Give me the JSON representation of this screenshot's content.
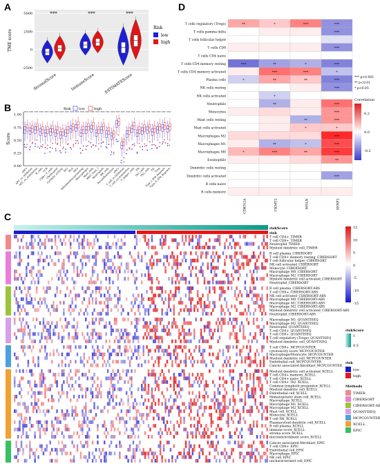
{
  "panels": {
    "a": "A",
    "b": "B",
    "c": "C",
    "d": "D"
  },
  "chart_data": [
    {
      "panel": "A",
      "type": "violin",
      "ylabel": "TME score",
      "yticks": [
        -2500,
        0,
        2500,
        5000
      ],
      "ylim": [
        -3000,
        5500
      ],
      "categories": [
        "StromalScore",
        "ImmuneScore",
        "ESTIMATEScore"
      ],
      "significance": [
        "***",
        "***",
        "***"
      ],
      "legend_title": "Risk",
      "colors": {
        "low": "#1f1fd6",
        "high": "#e01515"
      },
      "series": [
        {
          "name": "low",
          "median": [
            -350,
            620,
            300
          ],
          "q1": [
            -800,
            150,
            -500
          ],
          "q3": [
            100,
            1100,
            1000
          ],
          "min": [
            -1900,
            -800,
            -2200
          ],
          "max": [
            1300,
            2300,
            3200
          ]
        },
        {
          "name": "high",
          "median": [
            150,
            1000,
            1250
          ],
          "q1": [
            -300,
            500,
            400
          ],
          "q3": [
            600,
            1500,
            2000
          ],
          "min": [
            -1500,
            -500,
            -1400
          ],
          "max": [
            1900,
            2600,
            4200
          ]
        }
      ]
    },
    {
      "panel": "B",
      "type": "boxplot",
      "ylabel": "Score",
      "yticks": [
        0.0,
        0.25,
        0.5,
        0.75,
        1.0
      ],
      "ylim": [
        0,
        1.05
      ],
      "legend_title": "Risk",
      "colors": {
        "low": "#2a2ae0",
        "high": "#e02a2a"
      },
      "categories": [
        "aDCs",
        "APC_co_inhibition",
        "APC_co_stimulation",
        "B_cells",
        "CCR",
        "CD8+_T_cells",
        "Check-point",
        "Cytolytic_activity",
        "DCs",
        "HLA",
        "iDCs",
        "Inflammation-promoting",
        "Macrophages",
        "Mast_cells",
        "MHC_class_I",
        "Neutrophils",
        "NK_cells",
        "Parainflammation",
        "pDCs",
        "T_cell_co-inhibition",
        "T_cell_co-stimulation",
        "T_helper_cells",
        "Tfh",
        "Th1_cells",
        "Th2_cells",
        "TIL",
        "Treg",
        "Type_I_IFN_Reponse",
        "Type_II_IFN_Reponse"
      ],
      "low_median": [
        0.7,
        0.68,
        0.7,
        0.66,
        0.64,
        0.66,
        0.64,
        0.6,
        0.64,
        0.72,
        0.74,
        0.64,
        0.7,
        0.72,
        0.64,
        0.7,
        0.62,
        0.58,
        0.82,
        0.4,
        0.62,
        0.72,
        0.64,
        0.68,
        0.7,
        0.66,
        0.7,
        0.74,
        0.72
      ],
      "high_median": [
        0.74,
        0.72,
        0.76,
        0.7,
        0.7,
        0.72,
        0.7,
        0.66,
        0.7,
        0.76,
        0.8,
        0.7,
        0.76,
        0.78,
        0.7,
        0.76,
        0.68,
        0.62,
        0.86,
        0.46,
        0.68,
        0.78,
        0.7,
        0.74,
        0.74,
        0.72,
        0.76,
        0.78,
        0.76
      ]
    },
    {
      "panel": "C",
      "type": "heatmap",
      "legend_top_title": "riskScore",
      "legend_top_risk": "risk",
      "color_scale_ticks": [
        "15",
        "10",
        "5",
        "0",
        "-5",
        "-10",
        "-15"
      ],
      "annotation_legends": {
        "riskScore": {
          "title": "riskScore",
          "ticks": [
            "1",
            "0.5"
          ]
        },
        "risk": {
          "title": "risk",
          "items": [
            {
              "label": "low",
              "color": "#1a1ad0"
            },
            {
              "label": "high",
              "color": "#e01818"
            }
          ]
        },
        "methods": {
          "title": "Methods",
          "items": [
            {
              "label": "TIMER",
              "color": "#f08a8a"
            },
            {
              "label": "CIBERSORT",
              "color": "#e97ed8"
            },
            {
              "label": "CIBERSORT-ABS",
              "color": "#9cc43a"
            },
            {
              "label": "QUANTISEQ",
              "color": "#d6a0e8"
            },
            {
              "label": "MCPCOUNTER",
              "color": "#4aa0e0"
            },
            {
              "label": "XCELL",
              "color": "#f2a030"
            },
            {
              "label": "EPIC",
              "color": "#36c060"
            }
          ]
        }
      },
      "groups": [
        {
          "method": "TIMER",
          "rows": [
            "T cell CD4+_TIMER",
            "T cell CD8+_TIMER",
            "Neutrophil_TIMER",
            "Myeloid dendritic cell_TIMER"
          ]
        },
        {
          "method": "CIBERSORT",
          "rows": [
            "B cell plasma_CIBERSORT",
            "T cell CD4+ memory resting_CIBERSORT",
            "T cell follicular helper_CIBERSORT",
            "NK cell activated_CIBERSORT",
            "Monocyte_CIBERSORT",
            "Macrophage M0_CIBERSORT",
            "Macrophage M2_CIBERSORT",
            "Myeloid dendritic cell activated_CIBERSORT",
            "Neutrophil_CIBERSORT"
          ]
        },
        {
          "method": "CIBERSORT-ABS",
          "rows": [
            "B cell plasma_CIBERSORT-ABS",
            "T cell CD8+_CIBERSORT-ABS",
            "NK cell activated_CIBERSORT-ABS",
            "Macrophage M0_CIBERSORT-ABS",
            "Macrophage M1_CIBERSORT-ABS",
            "Macrophage M2_CIBERSORT-ABS",
            "Myeloid dendritic cell activated_CIBERSORT-ABS",
            "Neutrophil_CIBERSORT-ABS"
          ]
        },
        {
          "method": "QUANTISEQ",
          "rows": [
            "Macrophage M1_QUANTISEQ",
            "Macrophage M2_QUANTISEQ",
            "Neutrophil_QUANTISEQ",
            "T cell CD4+_QUANTISEQ",
            "T cell CD8+_QUANTISEQ",
            "T cell regulatory (Tregs)_QUANTISEQ",
            "Myeloid dendritic cell_QUANTISEQ"
          ]
        },
        {
          "method": "MCPCOUNTER",
          "rows": [
            "T cell CD8+_MCPCOUNTER",
            "cytotoxicity score_MCPCOUNTER",
            "Macrophage/Monocyte_MCPCOUNTER",
            "Myeloid dendritic cell_MCPCOUNTER",
            "Endothelial cell_MCPCOUNTER",
            "Cancer associated fibroblast_MCPCOUNTER"
          ]
        },
        {
          "method": "XCELL",
          "rows": [
            "Myeloid dendritic cell activated_XCELL",
            "T cell CD4+ memory_XCELL",
            "T cell CD4+ naive_XCELL",
            "T cell CD4+ Th2_XCELL",
            "Common lymphoid progenitor_XCELL",
            "Myeloid dendritic cell_XCELL",
            "Endothelial cell_XCELL",
            "Hematopoietic stem cell_XCELL",
            "Macrophage_XCELL",
            "Macrophage M1_XCELL",
            "Macrophage M2_XCELL",
            "Mast cell_XCELL",
            "Monocyte_XCELL",
            "T cell NK_XCELL",
            "Plasmacytoid dendritic cell_XCELL",
            "B cell plasma_XCELL",
            "immune score_XCELL",
            "stroma score_XCELL",
            "microenvironment score_XCELL"
          ]
        },
        {
          "method": "EPIC",
          "rows": [
            "Cancer associated fibroblast_EPIC",
            "T cell CD8+_EPIC",
            "Endothelial cell_EPIC",
            "Macrophage_EPIC",
            "NK cell_EPIC",
            "uncharacterized cell_EPIC"
          ]
        }
      ]
    },
    {
      "panel": "D",
      "type": "heatmap",
      "columns": [
        "CDKN2A",
        "CKMT2",
        "MSLN",
        "SFRP2"
      ],
      "rows": [
        "T cells regulatory (Tregs)",
        "T cells gamma delta",
        "T cells follicular helper",
        "T cells CD8",
        "T cells CD4 naive",
        "T cells CD4 memory resting",
        "T cells CD4 memory activated",
        "Plasma cells",
        "NK cells resting",
        "NK cells activated",
        "Neutrophils",
        "Monocytes",
        "Mast cells resting",
        "Mast cells activated",
        "Macrophages M2",
        "Macrophages M1",
        "Macrophages M0",
        "Eosinophils",
        "Dendritic cells resting",
        "Dendritic cells activated",
        "B cells naive",
        "B cells memory"
      ],
      "values": [
        [
          0.1,
          0.06,
          0.14,
          -0.14
        ],
        [
          0.0,
          0.02,
          0.02,
          -0.14
        ],
        [
          0.0,
          0.0,
          0.0,
          -0.04
        ],
        [
          0.02,
          0.02,
          0.02,
          -0.14
        ],
        [
          0.0,
          0.0,
          0.0,
          0.0
        ],
        [
          -0.18,
          -0.12,
          -0.1,
          -0.16
        ],
        [
          0.02,
          0.16,
          0.14,
          -0.08
        ],
        [
          -0.06,
          0.1,
          0.06,
          -0.16
        ],
        [
          0.0,
          0.0,
          0.02,
          -0.14
        ],
        [
          0.0,
          -0.06,
          0.0,
          0.0
        ],
        [
          0.0,
          -0.1,
          0.02,
          0.16
        ],
        [
          0.02,
          0.04,
          0.02,
          0.12
        ],
        [
          0.0,
          0.02,
          -0.1,
          0.12
        ],
        [
          0.0,
          0.02,
          0.06,
          0.06
        ],
        [
          0.04,
          0.04,
          0.04,
          0.24
        ],
        [
          0.02,
          -0.1,
          -0.08,
          0.2
        ],
        [
          0.08,
          0.14,
          0.1,
          0.22
        ],
        [
          0.02,
          0.02,
          0.04,
          0.12
        ],
        [
          0.0,
          0.0,
          0.0,
          0.0
        ],
        [
          0.0,
          0.0,
          0.0,
          -0.12
        ],
        [
          0.0,
          0.0,
          0.0,
          0.0
        ],
        [
          0.02,
          0.02,
          0.02,
          0.02
        ]
      ],
      "stars": [
        [
          "**",
          "*",
          "***",
          "***"
        ],
        [
          "",
          "",
          "",
          "***"
        ],
        [
          "",
          "",
          "",
          ""
        ],
        [
          "",
          "",
          "",
          "***"
        ],
        [
          "",
          "",
          "",
          ""
        ],
        [
          "***",
          "**",
          "*",
          "***"
        ],
        [
          "",
          "***",
          "***",
          "*"
        ],
        [
          "*",
          "**",
          "**",
          "***"
        ],
        [
          "",
          "",
          "",
          "***"
        ],
        [
          "",
          "*",
          "",
          ""
        ],
        [
          "",
          "**",
          "",
          "***"
        ],
        [
          "",
          "",
          "",
          "***"
        ],
        [
          "",
          "",
          "**",
          "***"
        ],
        [
          "",
          "",
          "*",
          "*"
        ],
        [
          "",
          "",
          "",
          "***"
        ],
        [
          "",
          "**",
          "*",
          "***"
        ],
        [
          "*",
          "***",
          "**",
          "***"
        ],
        [
          "",
          "",
          "",
          "**"
        ],
        [
          "",
          "",
          "",
          ""
        ],
        [
          "",
          "",
          "",
          "***"
        ],
        [
          "",
          "",
          "",
          ""
        ],
        [
          "",
          "",
          "",
          ""
        ]
      ],
      "significance_legend": [
        "*** p<0.001",
        "** p<0.01",
        "* p<0.05"
      ],
      "colorbar_title": "Correlation",
      "colorbar_ticks": [
        "0.2",
        "0.0",
        "-0.2"
      ],
      "color_range": [
        -0.25,
        0.25
      ]
    }
  ]
}
